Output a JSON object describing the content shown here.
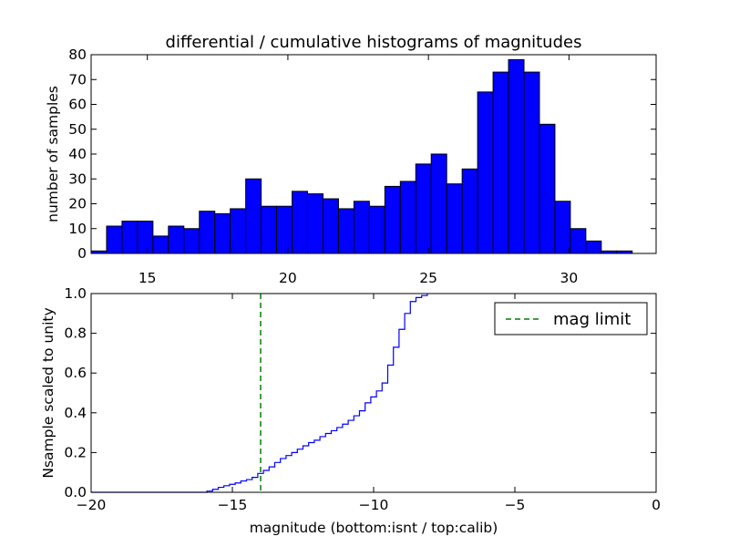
{
  "chart_data": [
    {
      "type": "bar",
      "title": "differential / cumulative histograms of magnitudes",
      "xlabel": "",
      "ylabel": "number of samples",
      "xlim": [
        13,
        33.1
      ],
      "ylim": [
        0,
        80
      ],
      "xticks": [
        15,
        20,
        25,
        30
      ],
      "yticks": [
        0,
        10,
        20,
        30,
        40,
        50,
        60,
        70,
        80
      ],
      "xtick_position": "top",
      "bar_color": "#0000ff",
      "bar_edge": "#000000",
      "bins": [
        {
          "x0": 13.0,
          "x1": 13.55,
          "value": 1
        },
        {
          "x0": 13.55,
          "x1": 14.1,
          "value": 11
        },
        {
          "x0": 14.1,
          "x1": 14.65,
          "value": 13
        },
        {
          "x0": 14.65,
          "x1": 15.2,
          "value": 13
        },
        {
          "x0": 15.2,
          "x1": 15.75,
          "value": 7
        },
        {
          "x0": 15.75,
          "x1": 16.3,
          "value": 11
        },
        {
          "x0": 16.3,
          "x1": 16.85,
          "value": 10
        },
        {
          "x0": 16.85,
          "x1": 17.4,
          "value": 17
        },
        {
          "x0": 17.4,
          "x1": 17.95,
          "value": 16
        },
        {
          "x0": 17.95,
          "x1": 18.5,
          "value": 18
        },
        {
          "x0": 18.5,
          "x1": 19.05,
          "value": 30
        },
        {
          "x0": 19.05,
          "x1": 19.6,
          "value": 19
        },
        {
          "x0": 19.6,
          "x1": 20.15,
          "value": 19
        },
        {
          "x0": 20.15,
          "x1": 20.7,
          "value": 25
        },
        {
          "x0": 20.7,
          "x1": 21.25,
          "value": 24
        },
        {
          "x0": 21.25,
          "x1": 21.8,
          "value": 22
        },
        {
          "x0": 21.8,
          "x1": 22.35,
          "value": 18
        },
        {
          "x0": 22.35,
          "x1": 22.9,
          "value": 21
        },
        {
          "x0": 22.9,
          "x1": 23.45,
          "value": 19
        },
        {
          "x0": 23.45,
          "x1": 24.0,
          "value": 27
        },
        {
          "x0": 24.0,
          "x1": 24.55,
          "value": 29
        },
        {
          "x0": 24.55,
          "x1": 25.1,
          "value": 36
        },
        {
          "x0": 25.1,
          "x1": 25.65,
          "value": 40
        },
        {
          "x0": 25.65,
          "x1": 26.2,
          "value": 28
        },
        {
          "x0": 26.2,
          "x1": 26.75,
          "value": 34
        },
        {
          "x0": 26.75,
          "x1": 27.3,
          "value": 65
        },
        {
          "x0": 27.3,
          "x1": 27.85,
          "value": 73
        },
        {
          "x0": 27.85,
          "x1": 28.4,
          "value": 78
        },
        {
          "x0": 28.4,
          "x1": 28.95,
          "value": 73
        },
        {
          "x0": 28.95,
          "x1": 29.5,
          "value": 52
        },
        {
          "x0": 29.5,
          "x1": 30.05,
          "value": 21
        },
        {
          "x0": 30.05,
          "x1": 30.6,
          "value": 10
        },
        {
          "x0": 30.6,
          "x1": 31.15,
          "value": 5
        },
        {
          "x0": 31.15,
          "x1": 31.7,
          "value": 1
        },
        {
          "x0": 31.7,
          "x1": 32.25,
          "value": 1
        }
      ]
    },
    {
      "type": "line",
      "step": true,
      "title": "",
      "xlabel": "magnitude (bottom:isnt / top:calib)",
      "ylabel": "Nsample scaled to unity",
      "xlim": [
        -20,
        0
      ],
      "ylim": [
        0,
        1.0
      ],
      "xticks": [
        -20,
        -15,
        -10,
        -5,
        0
      ],
      "xtick_labels": [
        "−20",
        "−15",
        "−10",
        "−5",
        "0"
      ],
      "yticks": [
        0.0,
        0.2,
        0.4,
        0.6,
        0.8,
        1.0
      ],
      "ytick_labels": [
        "0.0",
        "0.2",
        "0.4",
        "0.6",
        "0.8",
        "1.0"
      ],
      "line_color": "#0000ff",
      "x": [
        -20.0,
        -15.9,
        -15.7,
        -15.5,
        -15.3,
        -15.1,
        -14.9,
        -14.7,
        -14.5,
        -14.3,
        -14.1,
        -13.9,
        -13.7,
        -13.5,
        -13.3,
        -13.1,
        -12.9,
        -12.7,
        -12.5,
        -12.3,
        -12.1,
        -11.9,
        -11.7,
        -11.5,
        -11.3,
        -11.1,
        -10.9,
        -10.7,
        -10.5,
        -10.3,
        -10.1,
        -9.9,
        -9.7,
        -9.5,
        -9.3,
        -9.1,
        -8.9,
        -8.7,
        -8.5,
        -8.3,
        -8.1
      ],
      "y": [
        0.0,
        0.006,
        0.015,
        0.025,
        0.033,
        0.04,
        0.047,
        0.057,
        0.064,
        0.075,
        0.095,
        0.11,
        0.128,
        0.15,
        0.17,
        0.185,
        0.2,
        0.217,
        0.234,
        0.25,
        0.262,
        0.28,
        0.296,
        0.31,
        0.326,
        0.343,
        0.362,
        0.385,
        0.41,
        0.45,
        0.48,
        0.51,
        0.55,
        0.64,
        0.73,
        0.82,
        0.9,
        0.96,
        0.98,
        0.99,
        1.0
      ],
      "vline": {
        "x": -14,
        "label": "mag limit",
        "color": "#008000",
        "style": "dashed"
      },
      "legend": {
        "position": "top-right",
        "entries": [
          "mag limit"
        ]
      }
    }
  ]
}
